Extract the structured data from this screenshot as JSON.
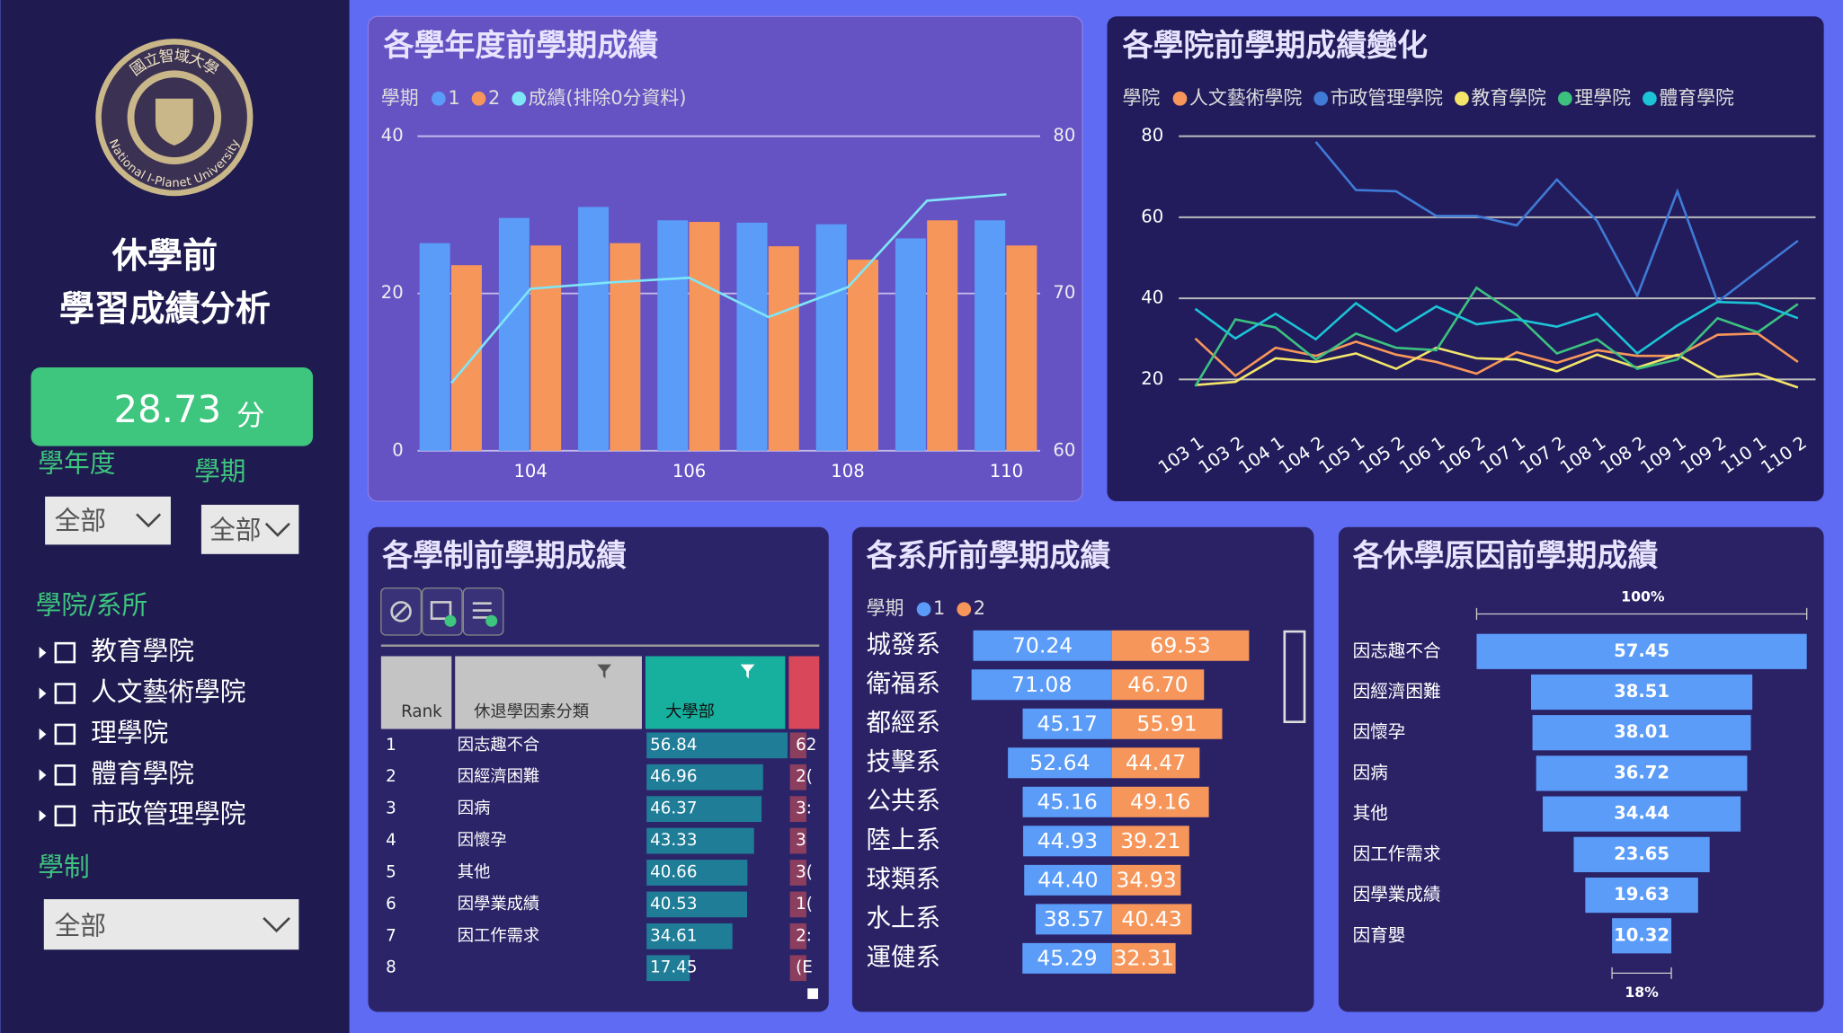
{
  "sidebar": {
    "logo_text": "國立智域大學",
    "logo_ring": "National I-Planet University",
    "title": [
      "休學前",
      "學習成績分析"
    ],
    "kpi": {
      "value": 28.73,
      "unit": "分"
    },
    "filters": {
      "year": {
        "label": "學年度",
        "value": "全部"
      },
      "term": {
        "label": "學期",
        "value": "全部"
      },
      "college": {
        "label": "學院/系所",
        "items": [
          "教育學院",
          "人文藝術學院",
          "理學院",
          "體育學院",
          "市政管理學院"
        ]
      },
      "system": {
        "label": "學制",
        "value": "全部"
      }
    }
  },
  "table": {
    "title": "各學制前學期成績",
    "columns": [
      "Rank",
      "休退學因素分類",
      "大學部"
    ],
    "rows": [
      [
        1,
        "因志趣不合",
        56.84,
        "62"
      ],
      [
        2,
        "因經濟困難",
        46.96,
        "2("
      ],
      [
        3,
        "因病",
        46.37,
        "3:"
      ],
      [
        4,
        "因懷孕",
        43.33,
        "3"
      ],
      [
        5,
        "其他",
        40.66,
        "3("
      ],
      [
        6,
        "因學業成績",
        40.53,
        "1("
      ],
      [
        7,
        "因工作需求",
        34.61,
        "2:"
      ],
      [
        8,
        null,
        17.45,
        "(E"
      ]
    ]
  },
  "chart_data": [
    {
      "type": "bar",
      "title": "各學年度前學期成績",
      "legend_title": "學期",
      "x": [
        103,
        104,
        105,
        106,
        107,
        108,
        109,
        110
      ],
      "xlim": [
        102.5,
        110.5
      ],
      "xticks": [
        104,
        106,
        108,
        110
      ],
      "ylim": [
        0,
        40
      ],
      "yticks": [
        0,
        20,
        40
      ],
      "y2lim": [
        60,
        80
      ],
      "y2ticks": [
        60,
        70,
        80
      ],
      "grid": true,
      "series": [
        {
          "name": "1",
          "type": "bar",
          "color": "#5b9cf9",
          "values": [
            26.4,
            29.6,
            31.0,
            29.3,
            29.0,
            28.8,
            27.0,
            29.3
          ]
        },
        {
          "name": "2",
          "type": "bar",
          "color": "#f7965a",
          "values": [
            23.6,
            26.1,
            26.4,
            29.1,
            26.0,
            24.3,
            29.3,
            26.1
          ]
        },
        {
          "name": "成績(排除0分資料)",
          "type": "line",
          "axis": "y2",
          "color": "#7fe6f7",
          "values": [
            64.3,
            70.3,
            70.7,
            71.0,
            68.5,
            70.4,
            75.9,
            76.3
          ]
        }
      ]
    },
    {
      "type": "line",
      "title": "各學院前學期成績變化",
      "legend_title": "學院",
      "categories": [
        "103 1",
        "103 2",
        "104 1",
        "104 2",
        "105 1",
        "105 2",
        "106 1",
        "106 2",
        "107 1",
        "107 2",
        "108 1",
        "108 2",
        "109 1",
        "109 2",
        "110 1",
        "110 2"
      ],
      "ylim": [
        16,
        80
      ],
      "yticks": [
        20,
        40,
        60,
        80
      ],
      "grid": true,
      "series": [
        {
          "name": "人文藝術學院",
          "color": "#f7965a",
          "values": [
            30.1,
            20.9,
            27.8,
            25.8,
            29.3,
            26.1,
            24.3,
            21.4,
            26.7,
            24.1,
            27.2,
            25.8,
            25.8,
            31.0,
            31.3,
            24.3
          ]
        },
        {
          "name": "市政管理學院",
          "color": "#3f7ad6",
          "values": [
            null,
            null,
            null,
            78.6,
            66.7,
            66.4,
            60.3,
            60.3,
            58.0,
            69.3,
            59.1,
            40.6,
            66.4,
            39.1,
            46.7,
            54.2
          ]
        },
        {
          "name": "教育學院",
          "color": "#f3e56a",
          "values": [
            18.6,
            19.4,
            25.2,
            24.3,
            26.4,
            22.6,
            27.8,
            25.2,
            24.9,
            22.0,
            26.1,
            22.9,
            26.1,
            20.6,
            21.4,
            18.0
          ]
        },
        {
          "name": "理學院",
          "color": "#3cc17f",
          "values": [
            18.3,
            34.8,
            32.8,
            24.9,
            31.3,
            27.8,
            27.2,
            42.6,
            35.9,
            26.4,
            29.9,
            22.6,
            24.9,
            35.1,
            31.6,
            38.6
          ]
        },
        {
          "name": "體育學院",
          "color": "#1cc3d6",
          "values": [
            37.4,
            30.1,
            36.2,
            29.9,
            38.8,
            31.9,
            38.0,
            33.6,
            34.8,
            33.0,
            36.2,
            26.4,
            33.3,
            39.1,
            38.8,
            35.1
          ]
        }
      ]
    },
    {
      "type": "butterfly",
      "title": "各系所前學期成績",
      "legend_title": "學期",
      "categories": [
        "城發系",
        "衛福系",
        "都經系",
        "技擊系",
        "公共系",
        "陸上系",
        "球類系",
        "水上系",
        "運健系"
      ],
      "series": [
        {
          "name": "1",
          "color": "#5b9cf9",
          "values": [
            70.24,
            71.08,
            45.17,
            52.64,
            45.16,
            44.93,
            44.4,
            38.57,
            45.29
          ],
          "value_labels": [
            "70.24",
            "71.08",
            "45.17",
            "52.64",
            "45.16",
            "44.93",
            "44.40",
            "38.57",
            "45.29"
          ]
        },
        {
          "name": "2",
          "color": "#f7965a",
          "values": [
            69.53,
            46.7,
            55.91,
            44.47,
            49.16,
            39.21,
            34.93,
            40.43,
            32.31
          ],
          "value_labels": [
            "69.53",
            "46.70",
            "55.91",
            "44.47",
            "49.16",
            "39.21",
            "34.93",
            "40.43",
            "32.31"
          ]
        }
      ]
    },
    {
      "type": "funnel",
      "title": "各休學原因前學期成績",
      "top_label": "100%",
      "bottom_label": "18%",
      "color": "#5b9cf9",
      "categories": [
        "因志趣不合",
        "因經濟困難",
        "因懷孕",
        "因病",
        "其他",
        "因工作需求",
        "因學業成績",
        "因育嬰"
      ],
      "values": [
        57.45,
        38.51,
        38.01,
        36.72,
        34.44,
        23.65,
        19.63,
        10.32
      ]
    }
  ]
}
